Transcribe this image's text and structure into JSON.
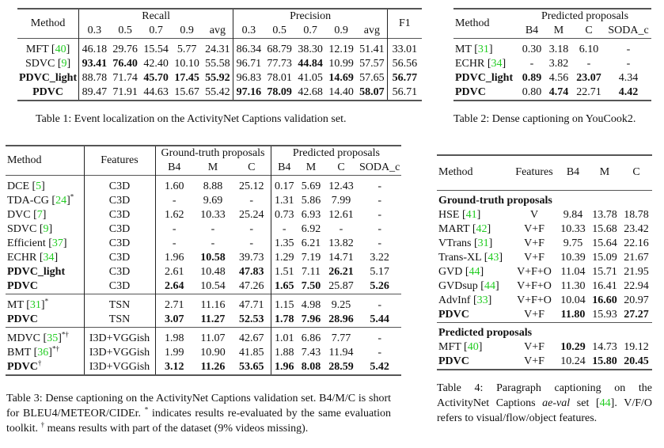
{
  "table1": {
    "caption": "Table 1: Event localization on the ActivityNet Captions validation set.",
    "header": {
      "method": "Method",
      "recall": "Recall",
      "precision": "Precision",
      "f1": "F1",
      "thresholds": [
        "0.3",
        "0.5",
        "0.7",
        "0.9",
        "avg"
      ]
    },
    "rows": [
      {
        "method": "MFT",
        "cite": "40",
        "bold_method": false,
        "cells": [
          "46.18",
          "29.76",
          "15.54",
          "5.77",
          "24.31",
          "86.34",
          "68.79",
          "38.30",
          "12.19",
          "51.41",
          "33.01"
        ],
        "bold": []
      },
      {
        "method": "SDVC",
        "cite": "9",
        "bold_method": false,
        "cells": [
          "93.41",
          "76.40",
          "42.40",
          "10.10",
          "55.58",
          "96.71",
          "77.73",
          "44.84",
          "10.99",
          "57.57",
          "56.56"
        ],
        "bold": [
          0,
          1,
          7
        ]
      },
      {
        "method": "PDVC_light",
        "cite": "",
        "bold_method": true,
        "cells": [
          "88.78",
          "71.74",
          "45.70",
          "17.45",
          "55.92",
          "96.83",
          "78.01",
          "41.05",
          "14.69",
          "57.65",
          "56.77"
        ],
        "bold": [
          2,
          3,
          4,
          8,
          10
        ]
      },
      {
        "method": "PDVC",
        "cite": "",
        "bold_method": true,
        "cells": [
          "89.47",
          "71.91",
          "44.63",
          "15.67",
          "55.42",
          "97.16",
          "78.09",
          "42.68",
          "14.40",
          "58.07",
          "56.71"
        ],
        "bold": [
          5,
          6,
          9
        ]
      }
    ]
  },
  "table2": {
    "caption": "Table 2: Dense captioning on YouCook2.",
    "header": {
      "method": "Method",
      "group": "Predicted proposals",
      "cols": [
        "B4",
        "M",
        "C",
        "SODA_c"
      ]
    },
    "rows": [
      {
        "method": "MT",
        "cite": "31",
        "bold_method": false,
        "cells": [
          "0.30",
          "3.18",
          "6.10",
          "-"
        ],
        "bold": []
      },
      {
        "method": "ECHR",
        "cite": "34",
        "bold_method": false,
        "cells": [
          "-",
          "3.82",
          "-",
          "-"
        ],
        "bold": []
      },
      {
        "method": "PDVC_light",
        "cite": "",
        "bold_method": true,
        "cells": [
          "0.89",
          "4.56",
          "23.07",
          "4.34"
        ],
        "bold": [
          0,
          2
        ]
      },
      {
        "method": "PDVC",
        "cite": "",
        "bold_method": true,
        "cells": [
          "0.80",
          "4.74",
          "22.71",
          "4.42"
        ],
        "bold": [
          1,
          3
        ]
      }
    ]
  },
  "table3": {
    "caption": {
      "p1": "Table 3: Dense captioning on the ActivityNet Captions validation set. B4/M/C is short for BLEU4/METEOR/CIDEr. ",
      "star": "*",
      "p2": " indicates results re-evaluated by the same evaluation toolkit. ",
      "dagger": "†",
      "p3": " means results with part of the dataset (9% videos missing)."
    },
    "header": {
      "method": "Method",
      "features": "Features",
      "gt": "Ground-truth proposals",
      "pred": "Predicted proposals",
      "gt_cols": [
        "B4",
        "M",
        "C"
      ],
      "pred_cols": [
        "B4",
        "M",
        "C",
        "SODA_c"
      ]
    },
    "groups": [
      [
        {
          "method": "DCE",
          "cite": "5",
          "sup": "",
          "bold_method": false,
          "features": "C3D",
          "cells": [
            "1.60",
            "8.88",
            "25.12",
            "0.17",
            "5.69",
            "12.43",
            "-"
          ],
          "bold": []
        },
        {
          "method": "TDA-CG",
          "cite": "24",
          "sup": "*",
          "bold_method": false,
          "features": "C3D",
          "cells": [
            "-",
            "9.69",
            "-",
            "1.31",
            "5.86",
            "7.99",
            "-"
          ],
          "bold": []
        },
        {
          "method": "DVC",
          "cite": "7",
          "sup": "",
          "bold_method": false,
          "features": "C3D",
          "cells": [
            "1.62",
            "10.33",
            "25.24",
            "0.73",
            "6.93",
            "12.61",
            "-"
          ],
          "bold": []
        },
        {
          "method": "SDVC",
          "cite": "9",
          "sup": "",
          "bold_method": false,
          "features": "C3D",
          "cells": [
            "-",
            "-",
            "-",
            "-",
            "6.92",
            "-",
            "-"
          ],
          "bold": []
        },
        {
          "method": "Efficient",
          "cite": "37",
          "sup": "",
          "bold_method": false,
          "features": "C3D",
          "cells": [
            "-",
            "-",
            "-",
            "1.35",
            "6.21",
            "13.82",
            "-"
          ],
          "bold": []
        },
        {
          "method": "ECHR",
          "cite": "34",
          "sup": "",
          "bold_method": false,
          "features": "C3D",
          "cells": [
            "1.96",
            "10.58",
            "39.73",
            "1.29",
            "7.19",
            "14.71",
            "3.22"
          ],
          "bold": [
            1
          ]
        },
        {
          "method": "PDVC_light",
          "cite": "",
          "sup": "",
          "bold_method": true,
          "features": "C3D",
          "cells": [
            "2.61",
            "10.48",
            "47.83",
            "1.51",
            "7.11",
            "26.21",
            "5.17"
          ],
          "bold": [
            2,
            5
          ]
        },
        {
          "method": "PDVC",
          "cite": "",
          "sup": "",
          "bold_method": true,
          "features": "C3D",
          "cells": [
            "2.64",
            "10.54",
            "47.26",
            "1.65",
            "7.50",
            "25.87",
            "5.26"
          ],
          "bold": [
            0,
            3,
            4,
            6
          ]
        }
      ],
      [
        {
          "method": "MT",
          "cite": "31",
          "sup": "*",
          "bold_method": false,
          "features": "TSN",
          "cells": [
            "2.71",
            "11.16",
            "47.71",
            "1.15",
            "4.98",
            "9.25",
            "-"
          ],
          "bold": []
        },
        {
          "method": "PDVC",
          "cite": "",
          "sup": "",
          "bold_method": true,
          "features": "TSN",
          "cells": [
            "3.07",
            "11.27",
            "52.53",
            "1.78",
            "7.96",
            "28.96",
            "5.44"
          ],
          "bold": [
            0,
            1,
            2,
            3,
            4,
            5,
            6
          ]
        }
      ],
      [
        {
          "method": "MDVC",
          "cite": "35",
          "sup": "*†",
          "bold_method": false,
          "features": "I3D+VGGish",
          "cells": [
            "1.98",
            "11.07",
            "42.67",
            "1.01",
            "6.86",
            "7.77",
            "-"
          ],
          "bold": []
        },
        {
          "method": "BMT",
          "cite": "36",
          "sup": "*†",
          "bold_method": false,
          "features": "I3D+VGGish",
          "cells": [
            "1.99",
            "10.90",
            "41.85",
            "1.88",
            "7.43",
            "11.94",
            "-"
          ],
          "bold": []
        },
        {
          "method": "PDVC",
          "cite": "",
          "sup": "†",
          "bold_method": true,
          "features": "I3D+VGGish",
          "cells": [
            "3.12",
            "11.26",
            "53.65",
            "1.96",
            "8.08",
            "28.59",
            "5.42"
          ],
          "bold": [
            0,
            1,
            2,
            3,
            4,
            5,
            6
          ]
        }
      ]
    ]
  },
  "table4": {
    "caption": {
      "p1": "Table 4: Paragraph captioning on the ActivityNet Captions ",
      "italic": "ae-val",
      "p2": " set [",
      "cite": "44",
      "p3": "]. V/F/O refers to visual/flow/object features."
    },
    "header": {
      "method": "Method",
      "features": "Features",
      "cols": [
        "B4",
        "M",
        "C"
      ]
    },
    "groups": [
      {
        "title": "Ground-truth proposals",
        "rows": [
          {
            "method": "HSE",
            "cite": "41",
            "bold_method": false,
            "features": "V",
            "cells": [
              "9.84",
              "13.78",
              "18.78"
            ],
            "bold": []
          },
          {
            "method": "MART",
            "cite": "42",
            "bold_method": false,
            "features": "V+F",
            "cells": [
              "10.33",
              "15.68",
              "23.42"
            ],
            "bold": []
          },
          {
            "method": "VTrans",
            "cite": "31",
            "bold_method": false,
            "features": "V+F",
            "cells": [
              "9.75",
              "15.64",
              "22.16"
            ],
            "bold": []
          },
          {
            "method": "Trans-XL",
            "cite": "43",
            "bold_method": false,
            "features": "V+F",
            "cells": [
              "10.39",
              "15.09",
              "21.67"
            ],
            "bold": []
          },
          {
            "method": "GVD",
            "cite": "44",
            "bold_method": false,
            "features": "V+F+O",
            "cells": [
              "11.04",
              "15.71",
              "21.95"
            ],
            "bold": []
          },
          {
            "method": "GVDsup",
            "cite": "44",
            "bold_method": false,
            "features": "V+F+O",
            "cells": [
              "11.30",
              "16.41",
              "22.94"
            ],
            "bold": []
          },
          {
            "method": "AdvInf",
            "cite": "33",
            "bold_method": false,
            "features": "V+F+O",
            "cells": [
              "10.04",
              "16.60",
              "20.97"
            ],
            "bold": [
              1
            ]
          },
          {
            "method": "PDVC",
            "cite": "",
            "bold_method": true,
            "features": "V+F",
            "cells": [
              "11.80",
              "15.93",
              "27.27"
            ],
            "bold": [
              0,
              2
            ]
          }
        ]
      },
      {
        "title": "Predicted proposals",
        "rows": [
          {
            "method": "MFT",
            "cite": "40",
            "bold_method": false,
            "features": "V+F",
            "cells": [
              "10.29",
              "14.73",
              "19.12"
            ],
            "bold": [
              0
            ]
          },
          {
            "method": "PDVC",
            "cite": "",
            "bold_method": true,
            "features": "V+F",
            "cells": [
              "10.24",
              "15.80",
              "20.45"
            ],
            "bold": [
              1,
              2
            ]
          }
        ]
      }
    ]
  }
}
